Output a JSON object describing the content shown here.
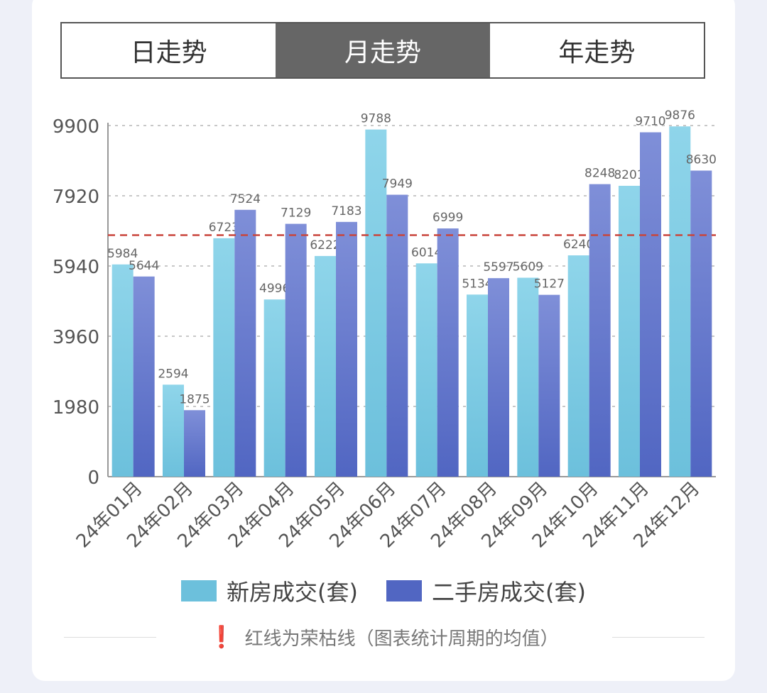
{
  "tabs": [
    {
      "label": "日走势",
      "active": false
    },
    {
      "label": "月走势",
      "active": true
    },
    {
      "label": "年走势",
      "active": false
    }
  ],
  "colors": {
    "new_house": "#6cc0dc",
    "second_hand": "#5166c2",
    "avg_line": "#c9453b",
    "active_tab": "#666666"
  },
  "chart_data": {
    "type": "bar",
    "categories": [
      "24年01月",
      "24年02月",
      "24年03月",
      "24年04月",
      "24年05月",
      "24年06月",
      "24年07月",
      "24年08月",
      "24年09月",
      "24年10月",
      "24年11月",
      "24年12月"
    ],
    "series": [
      {
        "name": "新房成交(套)",
        "values": [
          5984,
          2594,
          6723,
          4996,
          6222,
          9788,
          6014,
          5134,
          5609,
          6240,
          8201,
          9876
        ]
      },
      {
        "name": "二手房成交(套)",
        "values": [
          5644,
          1875,
          7524,
          7129,
          7183,
          7949,
          6999,
          5597,
          5127,
          8248,
          9710,
          8630
        ]
      }
    ],
    "yticks": [
      0,
      1980,
      3960,
      5940,
      7920,
      9900
    ],
    "ylim": [
      0,
      9900
    ],
    "grid": true,
    "reference_line": 6810,
    "legend_placement": "bottom"
  },
  "note": {
    "icon": "exclamation-icon",
    "text": "红线为荣枯线（图表统计周期的均值）"
  }
}
